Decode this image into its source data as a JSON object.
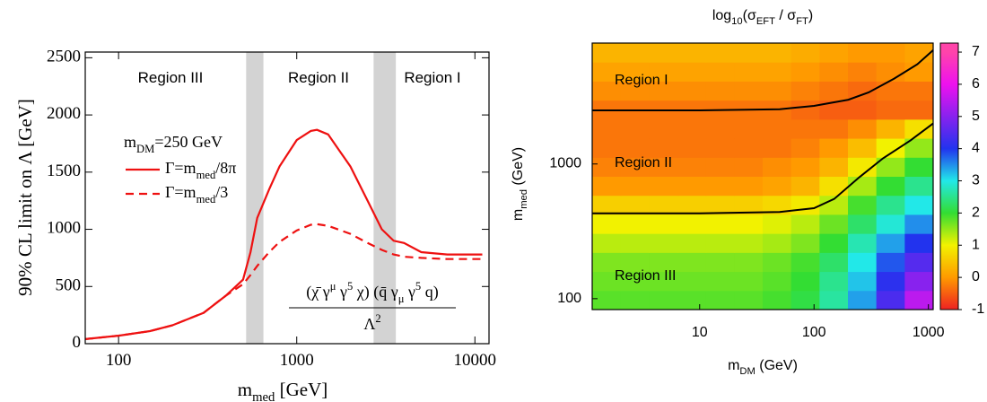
{
  "chart_data": [
    {
      "type": "line",
      "x_label": "m_{med} [GeV]",
      "y_label": "90% CL limit on Λ [GeV]",
      "xscale": "log",
      "x": [
        65,
        100,
        150,
        200,
        300,
        400,
        500,
        550,
        600,
        700,
        800,
        1000,
        1200,
        1300,
        1500,
        2000,
        2500,
        3000,
        3500,
        4000,
        5000,
        7000,
        10000,
        11000
      ],
      "series": [
        {
          "name": "Γ=m_{med}/8π",
          "color": "#ee1111",
          "dash": false,
          "values": [
            40,
            70,
            110,
            160,
            270,
            420,
            560,
            800,
            1100,
            1350,
            1550,
            1780,
            1860,
            1870,
            1830,
            1550,
            1250,
            1000,
            900,
            880,
            800,
            780,
            780,
            780
          ]
        },
        {
          "name": "Γ=m_{med}/3",
          "color": "#ee1111",
          "dash": true,
          "values": [
            40,
            70,
            110,
            160,
            270,
            420,
            520,
            600,
            680,
            800,
            890,
            990,
            1040,
            1045,
            1030,
            960,
            880,
            820,
            780,
            760,
            750,
            740,
            740,
            740
          ]
        }
      ],
      "legend_title": "m_{DM}=250 GeV",
      "bands": [
        [
          520,
          650
        ],
        [
          2700,
          3600
        ]
      ],
      "band_color": "#d3d3d3",
      "regions": [
        "Region III",
        "Region II",
        "Region I"
      ],
      "annotation": {
        "numerator": "(χ̄ γ^{μ} γ^{5} χ) (q̄ γ_{μ} γ^{5} q)",
        "denominator": "Λ^{2}"
      },
      "xlim": [
        65,
        12000
      ],
      "ylim": [
        0,
        2550
      ],
      "xticks": [
        100,
        1000,
        10000
      ],
      "yticks": [
        0,
        500,
        1000,
        1500,
        2000,
        2500
      ]
    },
    {
      "type": "heatmap",
      "title": "log_{10}(σ_{EFT} / σ_{FT})",
      "x_label": "m_{DM} (GeV)",
      "y_label": "m_{med}  (GeV)",
      "xscale": "log",
      "yscale": "log",
      "z": [
        [
          1.8,
          1.8,
          1.8,
          1.8,
          1.8,
          1.8,
          1.9,
          2.1,
          2.6,
          3.4,
          4.4,
          5.5
        ],
        [
          1.7,
          1.7,
          1.7,
          1.7,
          1.7,
          1.7,
          1.8,
          2.0,
          2.5,
          3.2,
          4.1,
          5.0
        ],
        [
          1.6,
          1.6,
          1.6,
          1.6,
          1.6,
          1.6,
          1.7,
          1.9,
          2.3,
          3.0,
          3.8,
          4.5
        ],
        [
          1.3,
          1.3,
          1.3,
          1.3,
          1.3,
          1.3,
          1.4,
          1.6,
          2.0,
          2.7,
          3.4,
          4.0
        ],
        [
          1.0,
          1.0,
          1.0,
          1.0,
          1.0,
          1.0,
          1.1,
          1.3,
          1.7,
          2.3,
          2.9,
          3.5
        ],
        [
          0.6,
          0.6,
          0.6,
          0.6,
          0.6,
          0.6,
          0.7,
          0.9,
          1.3,
          1.9,
          2.5,
          3.0
        ],
        [
          0.0,
          0.0,
          0.0,
          0.0,
          0.0,
          0.0,
          0.1,
          0.3,
          0.8,
          1.4,
          2.0,
          2.5
        ],
        [
          -0.2,
          -0.2,
          -0.2,
          -0.2,
          -0.2,
          -0.2,
          -0.1,
          0.0,
          0.3,
          0.9,
          1.5,
          2.0
        ],
        [
          -0.3,
          -0.3,
          -0.3,
          -0.3,
          -0.3,
          -0.3,
          -0.3,
          -0.2,
          0.0,
          0.4,
          1.0,
          1.5
        ],
        [
          -0.3,
          -0.3,
          -0.3,
          -0.3,
          -0.3,
          -0.3,
          -0.3,
          -0.3,
          -0.3,
          -0.1,
          0.3,
          0.8
        ],
        [
          -0.3,
          -0.3,
          -0.3,
          -0.3,
          -0.3,
          -0.3,
          -0.3,
          -0.4,
          -0.5,
          -0.5,
          -0.4,
          -0.4
        ],
        [
          -0.1,
          -0.1,
          -0.1,
          -0.1,
          -0.1,
          -0.1,
          -0.1,
          -0.2,
          -0.3,
          -0.4,
          -0.3,
          -0.3
        ],
        [
          0.1,
          0.1,
          0.1,
          0.1,
          0.1,
          0.1,
          0.1,
          0.0,
          -0.1,
          -0.2,
          -0.1,
          0.0
        ],
        [
          0.3,
          0.3,
          0.3,
          0.3,
          0.3,
          0.3,
          0.3,
          0.2,
          0.1,
          0.0,
          0.0,
          0.1
        ]
      ],
      "contours": [
        {
          "color": "#000000",
          "x": [
            1.15,
            10,
            50,
            100,
            200,
            300,
            500,
            800,
            1100
          ],
          "y": [
            2500,
            2500,
            2550,
            2700,
            3000,
            3400,
            4300,
            5500,
            7000
          ]
        },
        {
          "color": "#000000",
          "x": [
            1.15,
            10,
            50,
            100,
            150,
            250,
            400,
            700,
            1100
          ],
          "y": [
            430,
            430,
            440,
            470,
            550,
            800,
            1100,
            1500,
            2000
          ]
        }
      ],
      "regions": [
        "Region I",
        "Region II",
        "Region III"
      ],
      "colorscale": [
        "#ee2222",
        "#ff9a00",
        "#f2f200",
        "#33dd33",
        "#22e8e8",
        "#2233ee",
        "#8822ee",
        "#ee11ee",
        "#ff44aa"
      ],
      "zlim": [
        -1,
        7.28
      ],
      "zticks": [
        -1,
        0,
        1,
        2,
        3,
        4,
        5,
        6,
        7
      ],
      "xlim": [
        1.15,
        1100
      ],
      "ylim": [
        83,
        7900
      ],
      "xticks": [
        10,
        100,
        1000
      ],
      "yticks": [
        100,
        1000
      ]
    }
  ]
}
